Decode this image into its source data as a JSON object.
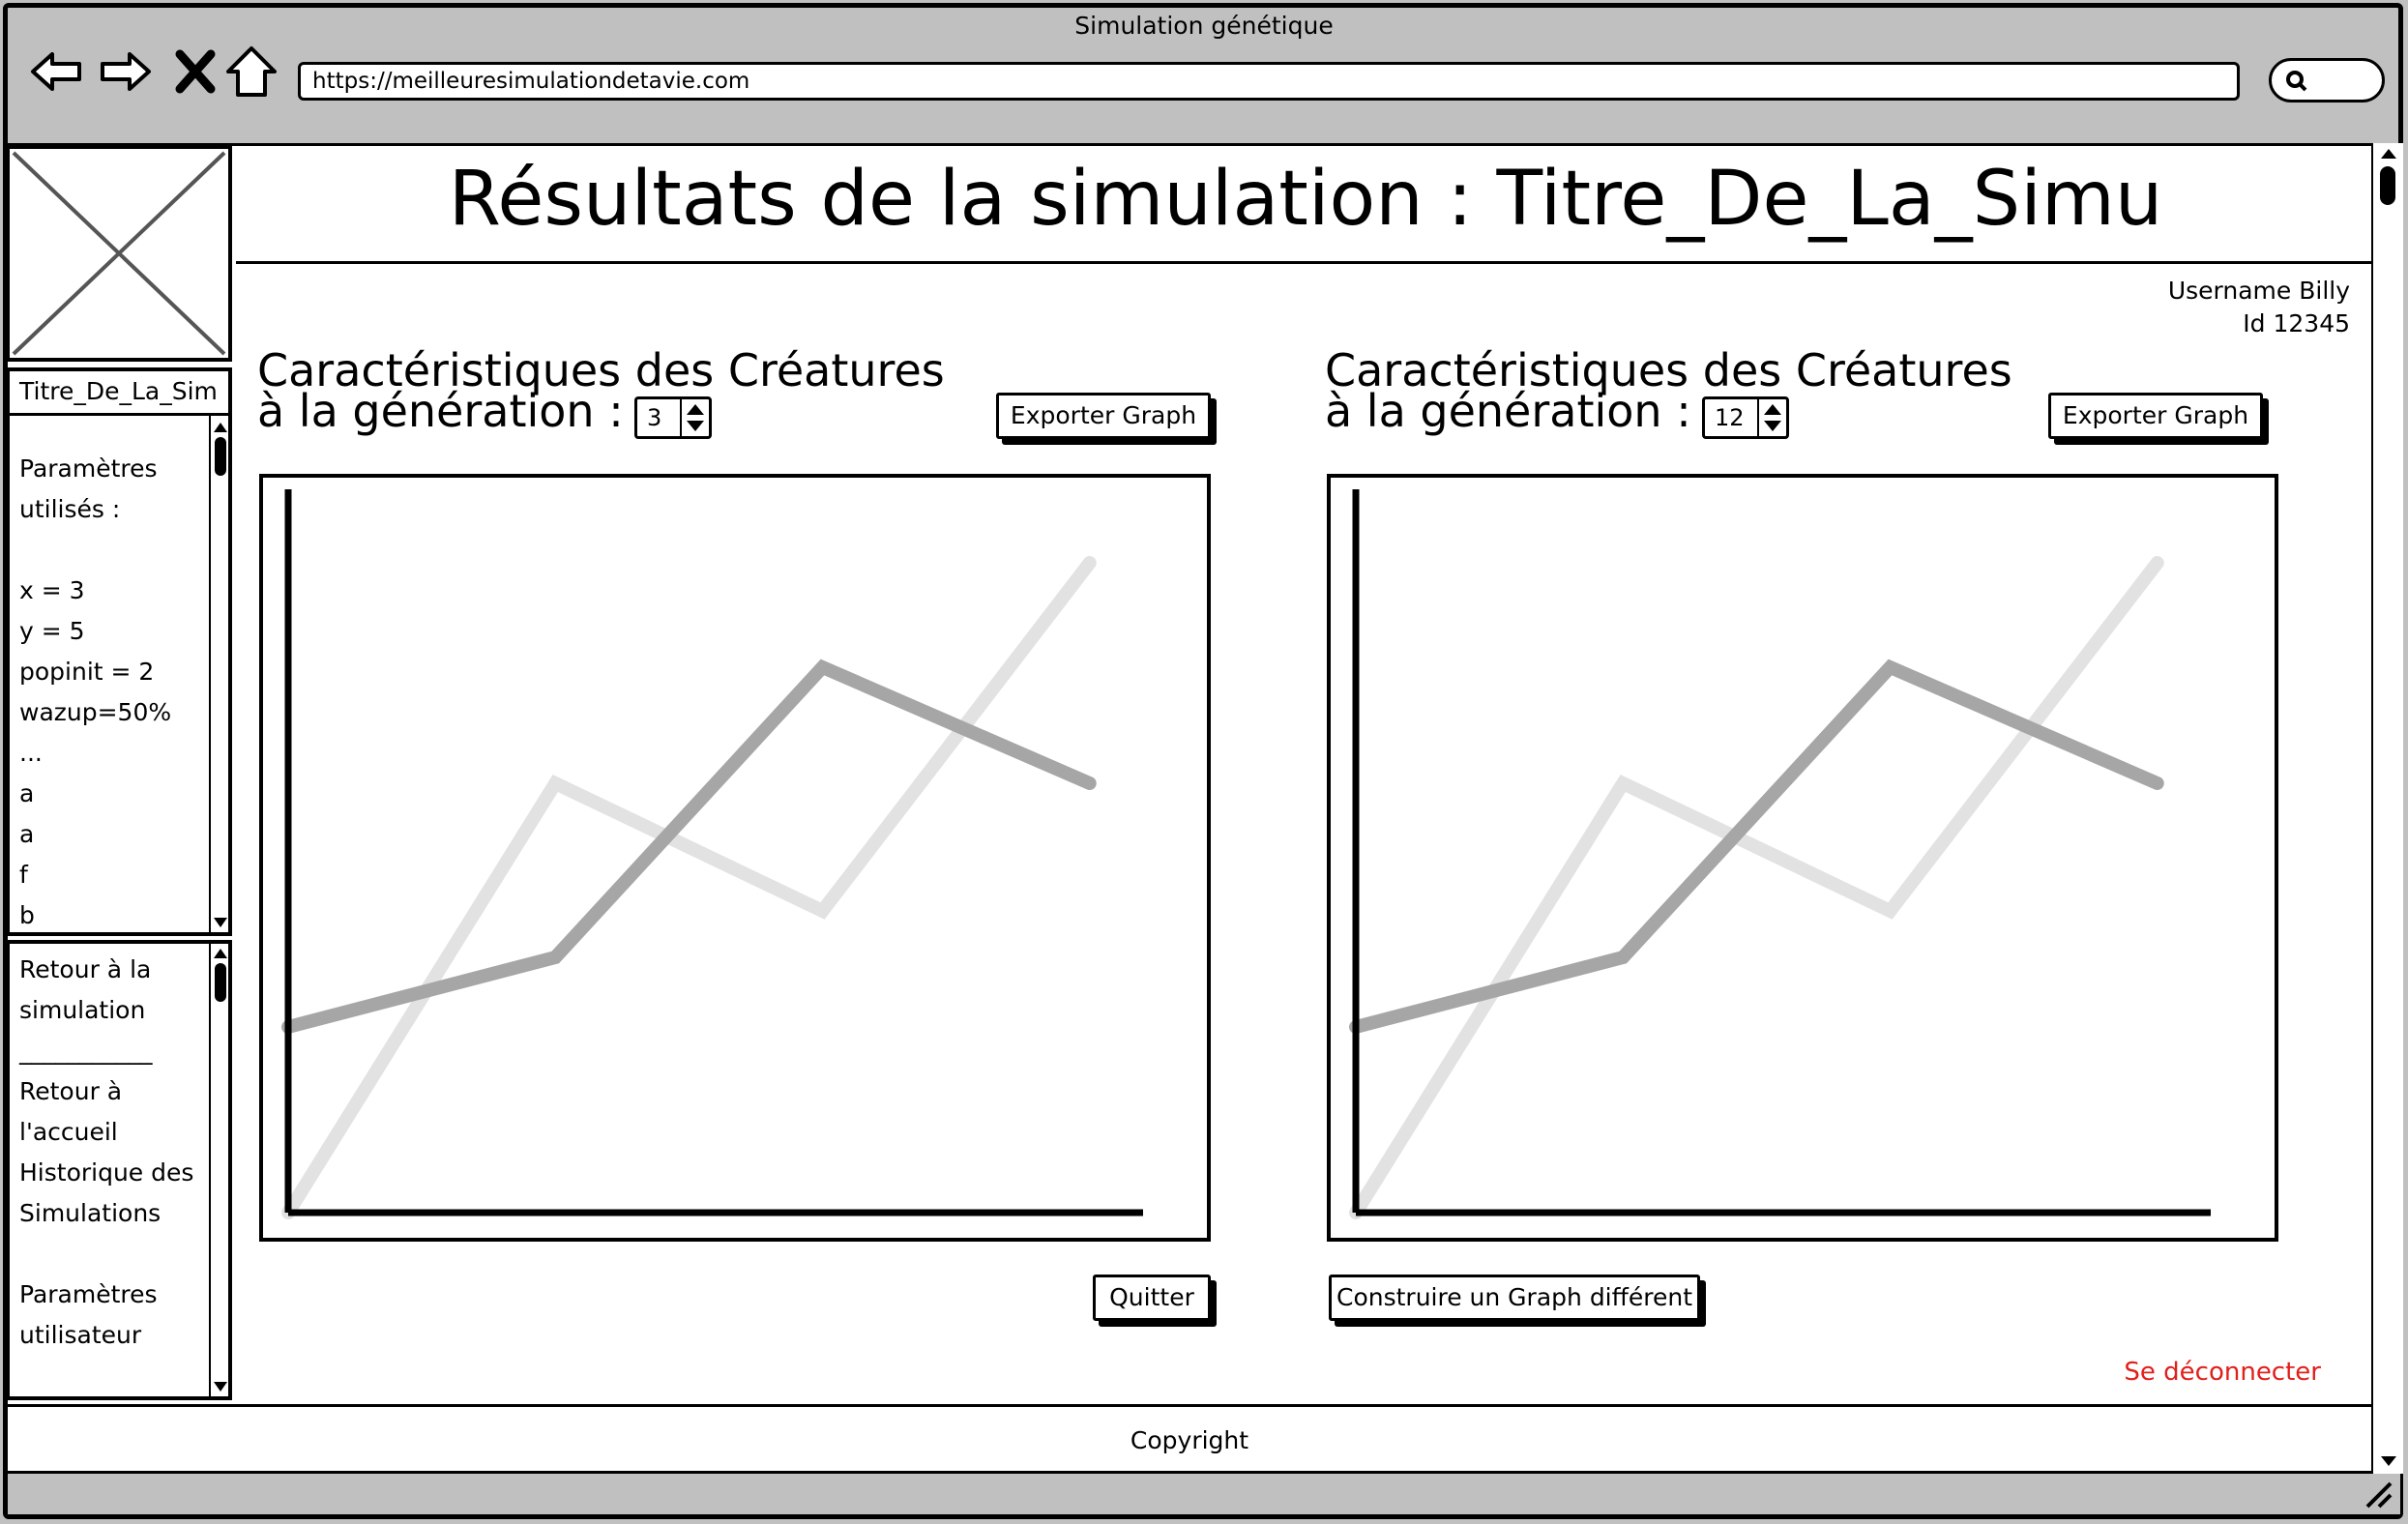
{
  "window": {
    "title": "Simulation génétique"
  },
  "browser": {
    "url": "https://meilleuresimulationdetavie.com",
    "nav": [
      "back-arrow-icon",
      "forward-arrow-icon",
      "close-x-icon",
      "home-icon"
    ],
    "search_icon": "search-icon"
  },
  "header": {
    "title": "Résultats de la simulation : Titre_De_La_Simu"
  },
  "user": {
    "name": "Username Billy",
    "id": "Id 12345"
  },
  "sidebar": {
    "sim_title": "Titre_De_La_Sim",
    "params_text": "Paramètres\nutilisés :\n\nx = 3\ny = 5\npopinit = 2\nwazup=50%\n...\na\na\nf\nb",
    "nav_items": [
      "Retour à la simulation",
      "___________",
      "Retour à l'accueil",
      "Historique des Simulations",
      "Paramètres utilisateur"
    ]
  },
  "charts": [
    {
      "heading_line1": "Caractéristiques des Créatures",
      "heading_line2": "à la génération :",
      "generation": "3",
      "export_label": "Exporter Graph"
    },
    {
      "heading_line1": "Caractéristiques des Créatures",
      "heading_line2": "à la génération :",
      "generation": "12",
      "export_label": "Exporter Graph"
    }
  ],
  "chart_data": [
    {
      "type": "line",
      "series": [
        {
          "color": "#a6a6a6",
          "values": [
            1.6,
            2.2,
            4.7,
            3.7
          ]
        },
        {
          "color": "#e2e2e2",
          "values": [
            0,
            3.7,
            2.6,
            5.6
          ]
        }
      ],
      "x": [
        0,
        1,
        2,
        3
      ],
      "ylim": [
        0,
        6
      ],
      "xlim": [
        0,
        3.2
      ],
      "title": "",
      "xlabel": "",
      "ylabel": "",
      "grid": false
    },
    {
      "type": "line",
      "series": [
        {
          "color": "#a6a6a6",
          "values": [
            1.6,
            2.2,
            4.7,
            3.7
          ]
        },
        {
          "color": "#e2e2e2",
          "values": [
            0,
            3.7,
            2.6,
            5.6
          ]
        }
      ],
      "x": [
        0,
        1,
        2,
        3
      ],
      "ylim": [
        0,
        6
      ],
      "xlim": [
        0,
        3.2
      ],
      "title": "",
      "xlabel": "",
      "ylabel": "",
      "grid": false
    }
  ],
  "buttons": {
    "quit": "Quitter",
    "build_graph": "Construire un Graph différent"
  },
  "logout": {
    "label": "Se déconnecter",
    "color": "#e0201b"
  },
  "footer": {
    "copyright": "Copyright"
  }
}
